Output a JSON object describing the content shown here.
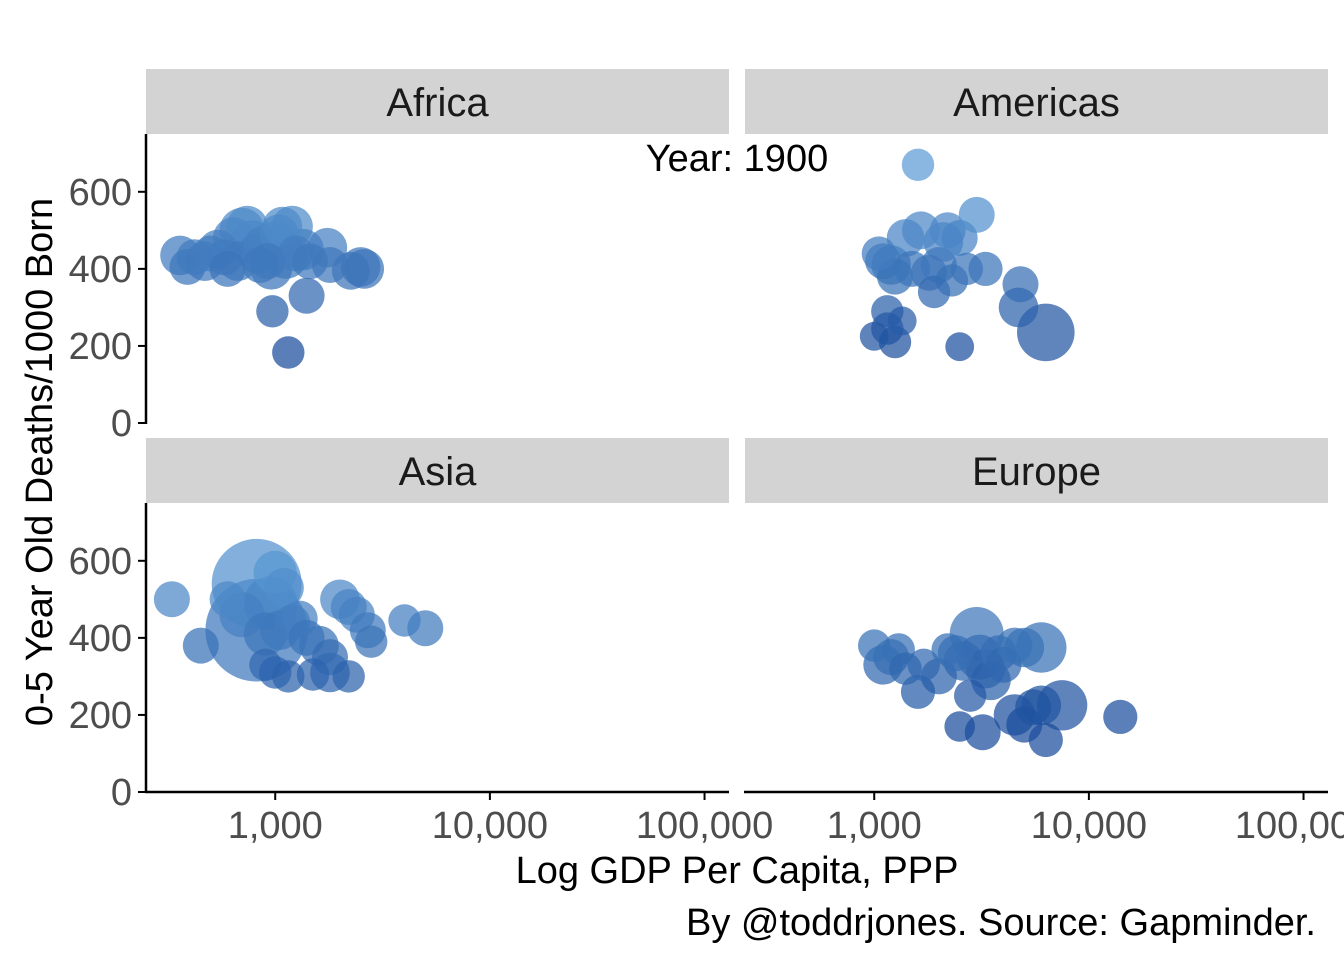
{
  "chart_data": {
    "type": "scatter",
    "xlabel": "Log GDP Per Capita, PPP",
    "ylabel": "0-5 Year Old Deaths/1000 Born",
    "caption": "By @toddrjones. Source: Gapminder.",
    "annotation": "Year: 1900",
    "x_scale": "log",
    "xlim": [
      250,
      130000
    ],
    "ylim": [
      0,
      750
    ],
    "x_ticks": [
      1000,
      10000,
      100000
    ],
    "x_tick_labels": [
      "1,000",
      "10,000",
      "100,000"
    ],
    "y_ticks": [
      0,
      200,
      400,
      600
    ],
    "y_tick_labels": [
      "0",
      "200",
      "400",
      "600"
    ],
    "grid": false,
    "legend": "none",
    "point_color_light": "#5b9bd5",
    "point_color_dark": "#1a4c9c",
    "strip_color": "#d3d3d3",
    "panels": [
      {
        "name": "Africa",
        "points": [
          {
            "x": 360,
            "y": 435,
            "size": 2.2
          },
          {
            "x": 390,
            "y": 405,
            "size": 2.0
          },
          {
            "x": 420,
            "y": 430,
            "size": 2.0
          },
          {
            "x": 470,
            "y": 420,
            "size": 2.2
          },
          {
            "x": 500,
            "y": 440,
            "size": 2.0
          },
          {
            "x": 540,
            "y": 450,
            "size": 2.2
          },
          {
            "x": 580,
            "y": 430,
            "size": 2.0
          },
          {
            "x": 600,
            "y": 400,
            "size": 2.0
          },
          {
            "x": 640,
            "y": 480,
            "size": 2.3
          },
          {
            "x": 670,
            "y": 420,
            "size": 2.2
          },
          {
            "x": 700,
            "y": 500,
            "size": 2.5
          },
          {
            "x": 740,
            "y": 510,
            "size": 2.3
          },
          {
            "x": 780,
            "y": 470,
            "size": 2.4
          },
          {
            "x": 820,
            "y": 440,
            "size": 2.2
          },
          {
            "x": 850,
            "y": 410,
            "size": 2.0
          },
          {
            "x": 880,
            "y": 460,
            "size": 2.2
          },
          {
            "x": 920,
            "y": 420,
            "size": 2.0
          },
          {
            "x": 960,
            "y": 400,
            "size": 2.3
          },
          {
            "x": 1000,
            "y": 470,
            "size": 2.3
          },
          {
            "x": 1040,
            "y": 490,
            "size": 2.2
          },
          {
            "x": 1080,
            "y": 510,
            "size": 2.2
          },
          {
            "x": 1120,
            "y": 430,
            "size": 2.4
          },
          {
            "x": 1200,
            "y": 510,
            "size": 2.3
          },
          {
            "x": 1250,
            "y": 440,
            "size": 2.0
          },
          {
            "x": 1350,
            "y": 450,
            "size": 2.3
          },
          {
            "x": 1450,
            "y": 420,
            "size": 2.0
          },
          {
            "x": 1750,
            "y": 455,
            "size": 2.2
          },
          {
            "x": 1800,
            "y": 410,
            "size": 2.0
          },
          {
            "x": 2250,
            "y": 395,
            "size": 2.1
          },
          {
            "x": 2500,
            "y": 405,
            "size": 2.2
          },
          {
            "x": 2600,
            "y": 400,
            "size": 2.2
          },
          {
            "x": 970,
            "y": 290,
            "size": 1.8
          },
          {
            "x": 1400,
            "y": 330,
            "size": 2.0
          },
          {
            "x": 1150,
            "y": 183,
            "size": 1.8
          }
        ]
      },
      {
        "name": "Americas",
        "points": [
          {
            "x": 1600,
            "y": 670,
            "size": 1.8
          },
          {
            "x": 1050,
            "y": 440,
            "size": 1.9
          },
          {
            "x": 1100,
            "y": 420,
            "size": 2.0
          },
          {
            "x": 1200,
            "y": 410,
            "size": 2.2
          },
          {
            "x": 1250,
            "y": 380,
            "size": 2.0
          },
          {
            "x": 1400,
            "y": 480,
            "size": 2.1
          },
          {
            "x": 1500,
            "y": 400,
            "size": 2.0
          },
          {
            "x": 1650,
            "y": 500,
            "size": 2.1
          },
          {
            "x": 1800,
            "y": 390,
            "size": 2.0
          },
          {
            "x": 1900,
            "y": 340,
            "size": 1.8
          },
          {
            "x": 2000,
            "y": 410,
            "size": 2.0
          },
          {
            "x": 2100,
            "y": 470,
            "size": 2.2
          },
          {
            "x": 2200,
            "y": 500,
            "size": 2.0
          },
          {
            "x": 2300,
            "y": 370,
            "size": 1.8
          },
          {
            "x": 2500,
            "y": 480,
            "size": 2.0
          },
          {
            "x": 2700,
            "y": 400,
            "size": 1.8
          },
          {
            "x": 3000,
            "y": 540,
            "size": 2.0
          },
          {
            "x": 3300,
            "y": 400,
            "size": 1.9
          },
          {
            "x": 4800,
            "y": 360,
            "size": 2.0
          },
          {
            "x": 4700,
            "y": 300,
            "size": 2.2
          },
          {
            "x": 6300,
            "y": 235,
            "size": 3.2
          },
          {
            "x": 1150,
            "y": 290,
            "size": 1.8
          },
          {
            "x": 1150,
            "y": 245,
            "size": 1.8
          },
          {
            "x": 1350,
            "y": 265,
            "size": 1.6
          },
          {
            "x": 1000,
            "y": 225,
            "size": 1.6
          },
          {
            "x": 1250,
            "y": 210,
            "size": 1.8
          },
          {
            "x": 2500,
            "y": 198,
            "size": 1.6
          }
        ]
      },
      {
        "name": "Asia",
        "points": [
          {
            "x": 330,
            "y": 500,
            "size": 2.0
          },
          {
            "x": 450,
            "y": 380,
            "size": 2.0
          },
          {
            "x": 600,
            "y": 500,
            "size": 2.0
          },
          {
            "x": 700,
            "y": 460,
            "size": 2.5
          },
          {
            "x": 820,
            "y": 540,
            "size": 5.0
          },
          {
            "x": 820,
            "y": 420,
            "size": 5.7
          },
          {
            "x": 1000,
            "y": 570,
            "size": 2.4
          },
          {
            "x": 950,
            "y": 490,
            "size": 3.0
          },
          {
            "x": 1100,
            "y": 530,
            "size": 2.2
          },
          {
            "x": 900,
            "y": 410,
            "size": 2.4
          },
          {
            "x": 1050,
            "y": 420,
            "size": 2.2
          },
          {
            "x": 1200,
            "y": 440,
            "size": 2.0
          },
          {
            "x": 1300,
            "y": 450,
            "size": 2.0
          },
          {
            "x": 1400,
            "y": 400,
            "size": 2.0
          },
          {
            "x": 1600,
            "y": 380,
            "size": 2.2
          },
          {
            "x": 1800,
            "y": 350,
            "size": 2.0
          },
          {
            "x": 900,
            "y": 330,
            "size": 1.8
          },
          {
            "x": 1000,
            "y": 310,
            "size": 1.8
          },
          {
            "x": 1150,
            "y": 300,
            "size": 1.8
          },
          {
            "x": 1500,
            "y": 305,
            "size": 1.8
          },
          {
            "x": 1800,
            "y": 310,
            "size": 2.2
          },
          {
            "x": 2000,
            "y": 500,
            "size": 2.2
          },
          {
            "x": 2200,
            "y": 480,
            "size": 2.0
          },
          {
            "x": 2400,
            "y": 460,
            "size": 2.0
          },
          {
            "x": 2700,
            "y": 420,
            "size": 2.0
          },
          {
            "x": 2800,
            "y": 390,
            "size": 1.8
          },
          {
            "x": 2200,
            "y": 300,
            "size": 1.8
          },
          {
            "x": 4000,
            "y": 445,
            "size": 1.8
          },
          {
            "x": 5000,
            "y": 425,
            "size": 2.0
          }
        ]
      },
      {
        "name": "Europe",
        "points": [
          {
            "x": 1000,
            "y": 380,
            "size": 1.8
          },
          {
            "x": 1100,
            "y": 330,
            "size": 2.2
          },
          {
            "x": 1200,
            "y": 350,
            "size": 2.0
          },
          {
            "x": 1300,
            "y": 370,
            "size": 1.8
          },
          {
            "x": 1400,
            "y": 320,
            "size": 1.8
          },
          {
            "x": 1600,
            "y": 260,
            "size": 1.9
          },
          {
            "x": 1700,
            "y": 330,
            "size": 1.8
          },
          {
            "x": 2000,
            "y": 300,
            "size": 2.0
          },
          {
            "x": 2200,
            "y": 370,
            "size": 1.8
          },
          {
            "x": 2400,
            "y": 360,
            "size": 2.0
          },
          {
            "x": 2600,
            "y": 340,
            "size": 2.2
          },
          {
            "x": 2800,
            "y": 250,
            "size": 1.8
          },
          {
            "x": 3000,
            "y": 410,
            "size": 3.0
          },
          {
            "x": 3100,
            "y": 350,
            "size": 2.5
          },
          {
            "x": 3300,
            "y": 320,
            "size": 2.2
          },
          {
            "x": 3500,
            "y": 290,
            "size": 2.2
          },
          {
            "x": 3800,
            "y": 360,
            "size": 2.0
          },
          {
            "x": 4000,
            "y": 330,
            "size": 2.0
          },
          {
            "x": 4500,
            "y": 380,
            "size": 2.0
          },
          {
            "x": 5000,
            "y": 375,
            "size": 2.2
          },
          {
            "x": 6000,
            "y": 375,
            "size": 2.8
          },
          {
            "x": 4500,
            "y": 200,
            "size": 2.3
          },
          {
            "x": 5000,
            "y": 175,
            "size": 2.0
          },
          {
            "x": 5500,
            "y": 220,
            "size": 2.0
          },
          {
            "x": 6000,
            "y": 225,
            "size": 2.2
          },
          {
            "x": 7500,
            "y": 225,
            "size": 2.8
          },
          {
            "x": 6300,
            "y": 135,
            "size": 1.9
          },
          {
            "x": 3200,
            "y": 155,
            "size": 2.0
          },
          {
            "x": 2500,
            "y": 170,
            "size": 1.7
          },
          {
            "x": 14000,
            "y": 195,
            "size": 1.9
          }
        ]
      }
    ]
  }
}
